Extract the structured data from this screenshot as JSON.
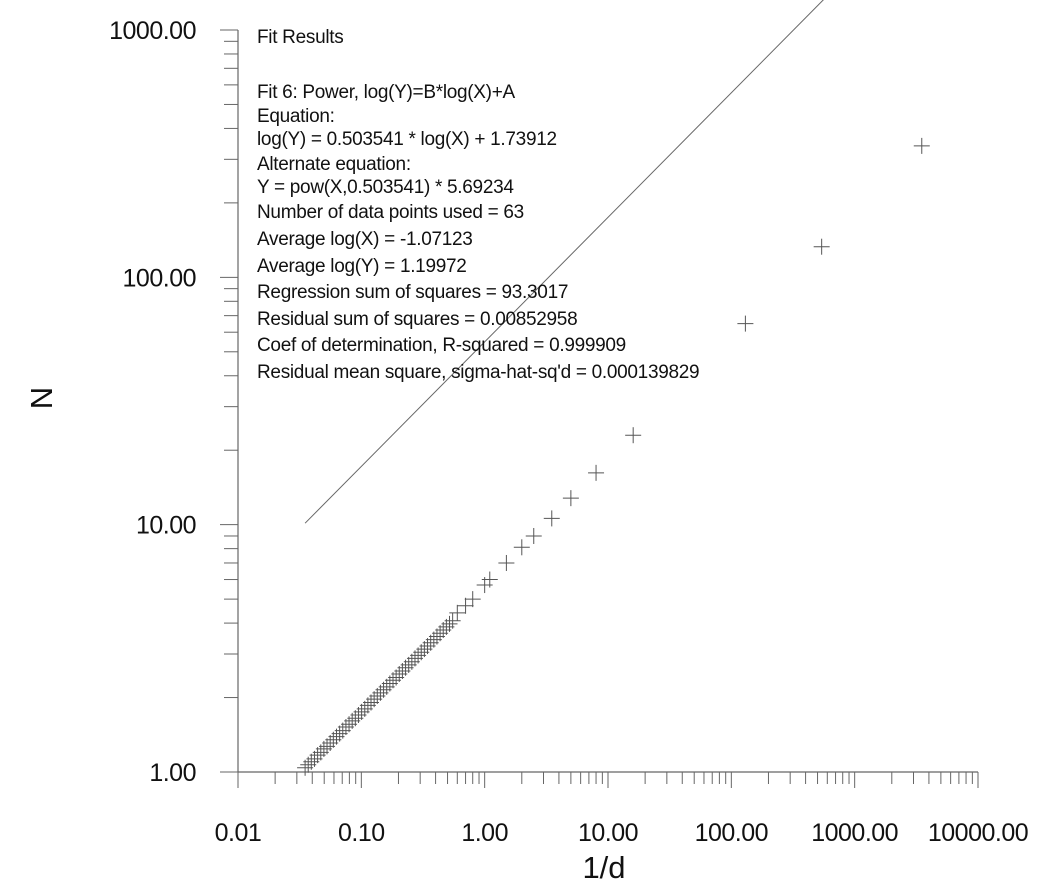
{
  "chart_data": {
    "type": "scatter",
    "title": "",
    "xlabel": "1/d",
    "ylabel": "N",
    "xscale": "log",
    "yscale": "log",
    "xlim": [
      0.01,
      10000
    ],
    "ylim": [
      1,
      1000
    ],
    "x_tick_labels": [
      "0.01",
      "0.10",
      "1.00",
      "10.00",
      "100.00",
      "1000.00",
      "10000.00"
    ],
    "y_tick_labels": [
      "1.00",
      "10.00",
      "100.00",
      "1000.00"
    ],
    "grid": false,
    "legend": "none",
    "marker": "plus",
    "fit_line": {
      "slope": 0.503541,
      "intercept": 1.73912,
      "x_range": [
        0.035,
        3500
      ]
    },
    "series": [
      {
        "x": [
          0.035,
          0.0371,
          0.0393,
          0.0417,
          0.0442,
          0.0469,
          0.0497,
          0.0527,
          0.0559,
          0.0593,
          0.0629,
          0.0667,
          0.0707,
          0.075,
          0.0795,
          0.0843,
          0.0894,
          0.0948,
          0.1005,
          0.1066,
          0.113,
          0.1198,
          0.127,
          0.1347,
          0.1428,
          0.1514,
          0.1606,
          0.1703,
          0.1806,
          0.1915,
          0.203,
          0.2153,
          0.2283,
          0.2421,
          0.2567,
          0.2722,
          0.2886,
          0.306,
          0.3245,
          0.3441,
          0.3649,
          0.387,
          0.4103,
          0.4351,
          0.4614,
          0.4893,
          0.5188,
          0.55,
          0.6,
          0.7,
          0.8,
          1.0,
          1.1,
          1.5,
          2.0,
          2.5,
          3.5,
          5.0,
          8.0,
          16.0,
          130.0,
          540.0,
          3500.0
        ],
        "y": [
          1.04,
          1.07,
          1.1,
          1.13,
          1.17,
          1.2,
          1.24,
          1.27,
          1.31,
          1.35,
          1.39,
          1.43,
          1.47,
          1.52,
          1.56,
          1.61,
          1.65,
          1.7,
          1.75,
          1.8,
          1.86,
          1.91,
          1.97,
          2.03,
          2.09,
          2.15,
          2.21,
          2.28,
          2.35,
          2.41,
          2.49,
          2.56,
          2.64,
          2.71,
          2.79,
          2.88,
          2.96,
          3.05,
          3.14,
          3.23,
          3.33,
          3.43,
          3.53,
          3.64,
          3.75,
          3.86,
          3.97,
          4.09,
          4.4,
          4.7,
          5.0,
          5.7,
          6.0,
          7.0,
          8.1,
          9.0,
          10.6,
          12.8,
          16.2,
          23.0,
          65.0,
          133.0,
          340.0
        ]
      }
    ],
    "fit_results": {
      "heading": "Fit Results",
      "lines": [
        "Fit 6:  Power, log(Y)=B*log(X)+A",
        "Equation:",
        "log(Y) = 0.503541 * log(X) + 1.73912",
        "Alternate equation:",
        "Y = pow(X,0.503541) * 5.69234",
        "Number of data points used = 63",
        "Average log(X) = -1.07123",
        "Average log(Y) = 1.19972",
        "Regression sum of squares = 93.3017",
        "Residual sum of squares = 0.00852958",
        "Coef of determination, R-squared = 0.999909",
        "Residual mean square, sigma-hat-sq'd = 0.000139829"
      ]
    }
  }
}
